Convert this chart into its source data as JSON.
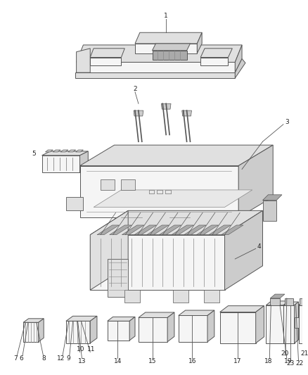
{
  "bg_color": "#ffffff",
  "line_color": "#555555",
  "line_color2": "#888888",
  "label_color": "#222222",
  "fig_width": 4.38,
  "fig_height": 5.33,
  "dpi": 100,
  "face_light": "#f5f5f5",
  "face_mid": "#e0e0e0",
  "face_dark": "#cccccc",
  "face_darker": "#aaaaaa"
}
